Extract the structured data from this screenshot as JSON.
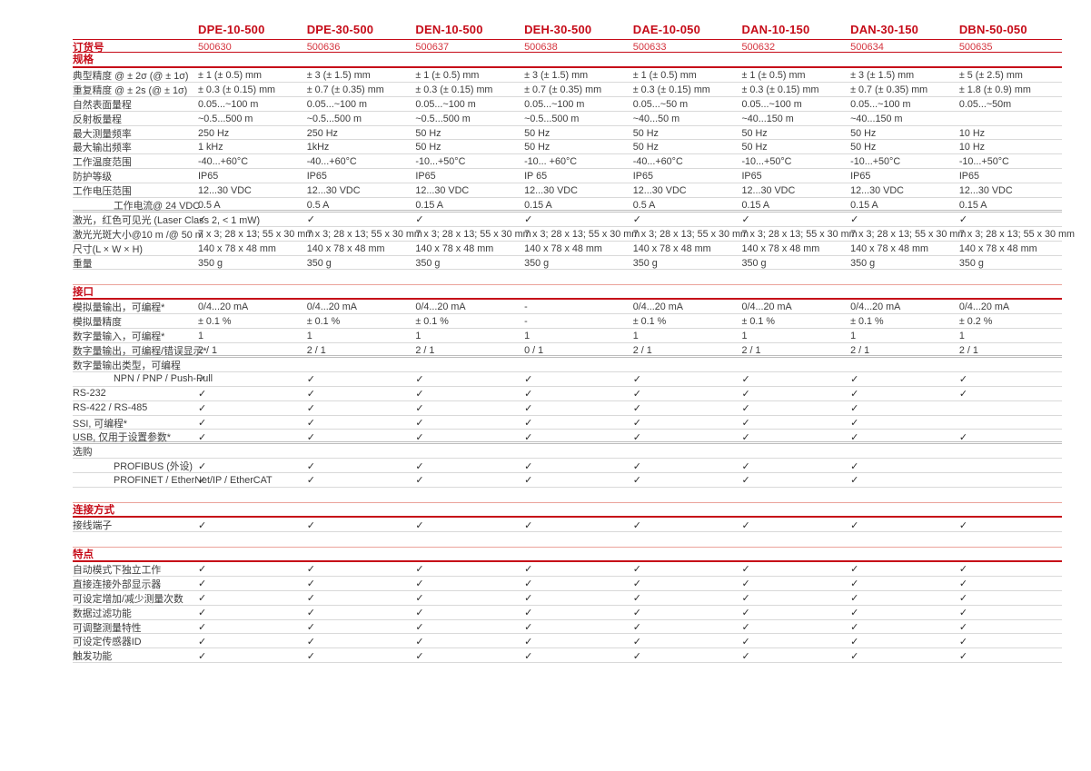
{
  "colors": {
    "accent_red": "#c60b18",
    "accent_red_soft": "#d4343e",
    "accent_red_pale": "#eba49b",
    "row_line": "#d9d9d9",
    "text": "#3d3d3d"
  },
  "icons": {
    "check": "✓"
  },
  "header": {
    "products": [
      "DPE-10-500",
      "DPE-30-500",
      "DEN-10-500",
      "DEH-30-500",
      "DAE-10-050",
      "DAN-10-150",
      "DAN-30-150",
      "DBN-50-050"
    ],
    "order_label": "订货号",
    "order_numbers": [
      "500630",
      "500636",
      "500637",
      "500638",
      "500633",
      "500632",
      "500634",
      "500635"
    ]
  },
  "sections": [
    {
      "title": "规格",
      "rows": [
        {
          "label": "典型精度 @ ± 2σ (@ ± 1σ)",
          "values": [
            "± 1 (± 0.5) mm",
            "± 3 (± 1.5) mm",
            "± 1 (± 0.5) mm",
            "± 3 (± 1.5) mm",
            "± 1 (± 0.5) mm",
            "± 1 (± 0.5) mm",
            "± 3 (± 1.5) mm",
            "± 5 (± 2.5) mm"
          ]
        },
        {
          "label": "重复精度 @ ± 2s (@ ± 1σ)",
          "values": [
            "± 0.3 (± 0.15) mm",
            "± 0.7 (± 0.35) mm",
            "± 0.3 (± 0.15) mm",
            "± 0.7 (± 0.35) mm",
            "± 0.3 (± 0.15) mm",
            "± 0.3 (± 0.15) mm",
            "± 0.7 (± 0.35) mm",
            "± 1.8 (± 0.9) mm"
          ]
        },
        {
          "label": "自然表面量程",
          "values": [
            "0.05...~100 m",
            "0.05...~100 m",
            "0.05...~100 m",
            "0.05...~100 m",
            "0.05...~50 m",
            "0.05...~100 m",
            "0.05...~100 m",
            "0.05...~50m"
          ]
        },
        {
          "label": "反射板量程",
          "values": [
            "~0.5...500 m",
            "~0.5...500 m",
            "~0.5...500 m",
            "~0.5...500 m",
            "~40...50 m",
            "~40...150 m",
            "~40...150 m",
            ""
          ]
        },
        {
          "label": "最大测量频率",
          "values": [
            "250 Hz",
            "250 Hz",
            "50 Hz",
            "50 Hz",
            "50 Hz",
            "50 Hz",
            "50 Hz",
            "10 Hz"
          ]
        },
        {
          "label": "最大输出频率",
          "values": [
            "1 kHz",
            "1kHz",
            "50 Hz",
            "50 Hz",
            "50 Hz",
            "50 Hz",
            "50 Hz",
            "10 Hz"
          ]
        },
        {
          "label": "工作温度范围",
          "values": [
            "-40...+60°C",
            "-40...+60°C",
            "-10...+50°C",
            "-10... +60°C",
            "-40...+60°C",
            "-10...+50°C",
            "-10...+50°C",
            "-10...+50°C"
          ]
        },
        {
          "label": "防护等级",
          "values": [
            "IP65",
            "IP65",
            "IP65",
            "IP 65",
            "IP65",
            "IP65",
            "IP65",
            "IP65"
          ]
        },
        {
          "label": "工作电压范围",
          "values": [
            "12...30 VDC",
            "12...30 VDC",
            "12...30 VDC",
            "12...30 VDC",
            "12...30 VDC",
            "12...30 VDC",
            "12...30 VDC",
            "12...30 VDC"
          ]
        },
        {
          "label": "工作电流@ 24 VDC",
          "indent": true,
          "group_end": true,
          "values": [
            "0.5 A",
            "0.5 A",
            "0.15 A",
            "0.15 A",
            "0.5 A",
            "0.15 A",
            "0.15 A",
            "0.15 A"
          ]
        },
        {
          "label": "激光，红色可见光 (Laser Class 2, < 1 mW)",
          "values": [
            "✓",
            "✓",
            "✓",
            "✓",
            "✓",
            "✓",
            "✓",
            "✓"
          ]
        },
        {
          "label": "激光光斑大小@10 m /@ 50 m",
          "values": [
            "7 x 3; 28 x 13; 55 x 30 mm",
            "7 x 3; 28 x 13; 55 x 30 mm",
            "7 x 3; 28 x 13; 55 x 30 mm",
            "7 x 3; 28 x 13; 55 x 30 mm",
            "7 x 3; 28 x 13; 55 x 30 mm",
            "7 x 3; 28 x 13; 55 x 30 mm",
            "7 x 3; 28 x 13; 55 x 30 mm",
            "7 x 3; 28 x 13; 55 x 30 mm"
          ]
        },
        {
          "label": "尺寸(L × W × H)",
          "values": [
            "140 x 78 x 48 mm",
            "140 x 78 x 48 mm",
            "140 x 78 x 48 mm",
            "140 x 78 x 48 mm",
            "140 x 78 x 48 mm",
            "140 x 78 x 48 mm",
            "140 x 78 x 48 mm",
            "140 x 78 x 48 mm"
          ]
        },
        {
          "label": "重量",
          "values": [
            "350 g",
            "350 g",
            "350 g",
            "350 g",
            "350 g",
            "350 g",
            "350 g",
            "350 g"
          ]
        }
      ]
    },
    {
      "title": "接口",
      "rows": [
        {
          "label": "模拟量输出，可编程*",
          "values": [
            "0/4...20 mA",
            "0/4...20 mA",
            "0/4...20 mA",
            "-",
            "0/4...20 mA",
            "0/4...20 mA",
            "0/4...20 mA",
            "0/4...20 mA"
          ]
        },
        {
          "label": "模拟量精度",
          "values": [
            "± 0.1 %",
            "± 0.1 %",
            "± 0.1 %",
            "-",
            "± 0.1 %",
            "± 0.1 %",
            "± 0.1 %",
            "± 0.2 %"
          ]
        },
        {
          "label": "数字量输入，可编程*",
          "values": [
            "1",
            "1",
            "1",
            "1",
            "1",
            "1",
            "1",
            "1"
          ]
        },
        {
          "label": "数字量输出，可编程/错误显示*",
          "group_end": true,
          "values": [
            "2 / 1",
            "2 / 1",
            "2 / 1",
            "0 / 1",
            "2 / 1",
            "2 / 1",
            "2 / 1",
            "2 / 1"
          ]
        },
        {
          "label": "数字量输出类型，可编程",
          "values": [
            "",
            "",
            "",
            "",
            "",
            "",
            "",
            ""
          ]
        },
        {
          "label": "NPN / PNP / Push-Pull",
          "indent": true,
          "values": [
            "✓",
            "✓",
            "✓",
            "✓",
            "✓",
            "✓",
            "✓",
            "✓"
          ]
        },
        {
          "label": "RS-232",
          "values": [
            "✓",
            "✓",
            "✓",
            "✓",
            "✓",
            "✓",
            "✓",
            "✓"
          ]
        },
        {
          "label": "RS-422 / RS-485",
          "values": [
            "✓",
            "✓",
            "✓",
            "✓",
            "✓",
            "✓",
            "✓",
            ""
          ]
        },
        {
          "label": "SSI, 可编程*",
          "values": [
            "✓",
            "✓",
            "✓",
            "✓",
            "✓",
            "✓",
            "✓",
            ""
          ]
        },
        {
          "label": "USB, 仅用于设置参数*",
          "group_end": true,
          "values": [
            "✓",
            "✓",
            "✓",
            "✓",
            "✓",
            "✓",
            "✓",
            "✓"
          ]
        },
        {
          "label": "选购",
          "values": [
            "",
            "",
            "",
            "",
            "",
            "",
            "",
            ""
          ]
        },
        {
          "label": "PROFIBUS (外设)",
          "indent": true,
          "values": [
            "✓",
            "✓",
            "✓",
            "✓",
            "✓",
            "✓",
            "✓",
            ""
          ]
        },
        {
          "label": "PROFINET / EtherNet/IP / EtherCAT",
          "indent": true,
          "values": [
            "✓",
            "✓",
            "✓",
            "✓",
            "✓",
            "✓",
            "✓",
            ""
          ]
        }
      ]
    },
    {
      "title": "连接方式",
      "rows": [
        {
          "label": "接线端子",
          "values": [
            "✓",
            "✓",
            "✓",
            "✓",
            "✓",
            "✓",
            "✓",
            "✓"
          ]
        }
      ]
    },
    {
      "title": "特点",
      "rows": [
        {
          "label": "自动模式下独立工作",
          "values": [
            "✓",
            "✓",
            "✓",
            "✓",
            "✓",
            "✓",
            "✓",
            "✓"
          ]
        },
        {
          "label": "直接连接外部显示器",
          "values": [
            "✓",
            "✓",
            "✓",
            "✓",
            "✓",
            "✓",
            "✓",
            "✓"
          ]
        },
        {
          "label": "可设定增加/减少测量次数",
          "values": [
            "✓",
            "✓",
            "✓",
            "✓",
            "✓",
            "✓",
            "✓",
            "✓"
          ]
        },
        {
          "label": "数据过滤功能",
          "values": [
            "✓",
            "✓",
            "✓",
            "✓",
            "✓",
            "✓",
            "✓",
            "✓"
          ]
        },
        {
          "label": "可调整测量特性",
          "values": [
            "✓",
            "✓",
            "✓",
            "✓",
            "✓",
            "✓",
            "✓",
            "✓"
          ]
        },
        {
          "label": "可设定传感器ID",
          "values": [
            "✓",
            "✓",
            "✓",
            "✓",
            "✓",
            "✓",
            "✓",
            "✓"
          ]
        },
        {
          "label": "触发功能",
          "values": [
            "✓",
            "✓",
            "✓",
            "✓",
            "✓",
            "✓",
            "✓",
            "✓"
          ]
        }
      ]
    }
  ]
}
